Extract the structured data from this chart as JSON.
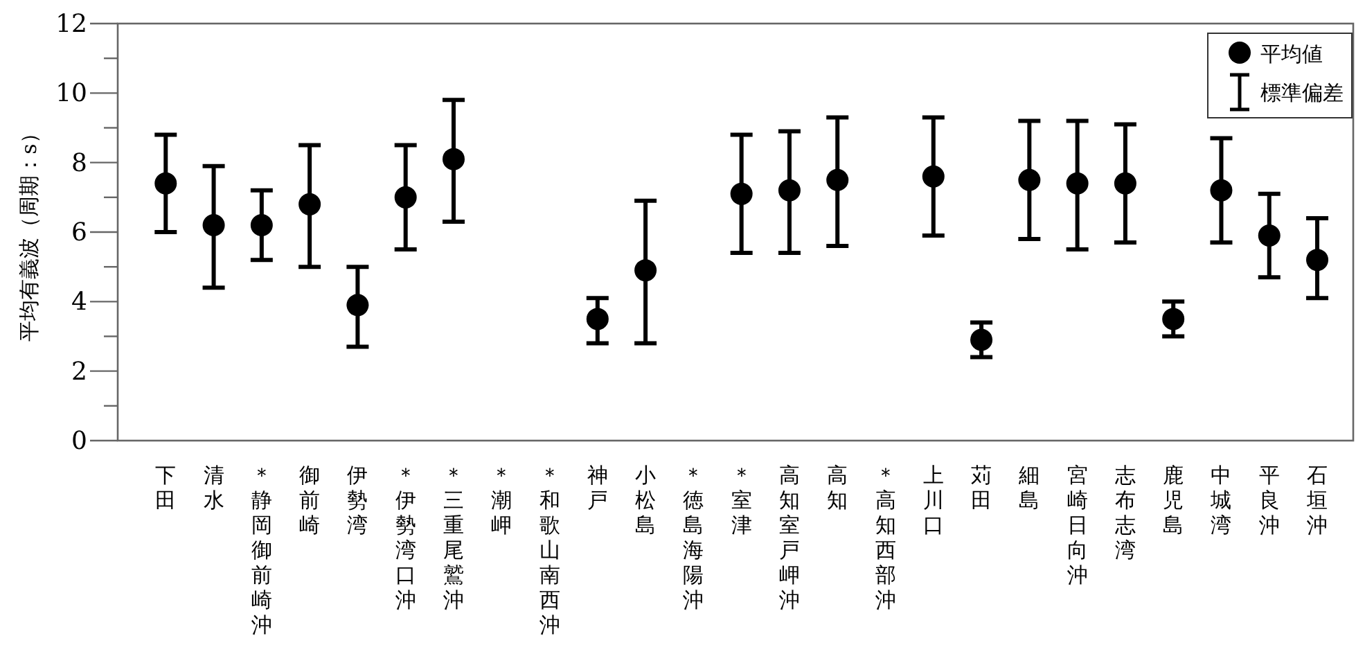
{
  "chart_data": {
    "type": "scatter",
    "ylabel": "平均有義波（周期：s）",
    "categories": [
      "下田",
      "清水",
      "＊静岡御前崎沖",
      "御前崎",
      "伊勢湾",
      "＊伊勢湾口沖",
      "＊三重尾鷲沖",
      "＊潮岬",
      "＊和歌山南西沖",
      "神戸",
      "小松島",
      "＊徳島海陽沖",
      "＊室津",
      "高知室戸岬沖",
      "高知",
      "＊高知西部沖",
      "上川口",
      "苅田",
      "細島",
      "宮崎日向沖",
      "志布志湾",
      "鹿児島",
      "中城湾",
      "平良沖",
      "石垣沖"
    ],
    "series": [
      {
        "name": "平均値",
        "color": "#000000",
        "values": [
          7.4,
          6.2,
          6.2,
          6.8,
          3.9,
          7.0,
          8.1,
          null,
          null,
          3.5,
          4.9,
          null,
          7.1,
          7.2,
          7.5,
          null,
          7.6,
          2.9,
          7.5,
          7.4,
          7.4,
          3.5,
          7.2,
          5.9,
          5.2
        ],
        "errors": [
          [
            6.0,
            8.8
          ],
          [
            4.4,
            7.9
          ],
          [
            5.2,
            7.2
          ],
          [
            5.0,
            8.5
          ],
          [
            2.7,
            5.0
          ],
          [
            5.5,
            8.5
          ],
          [
            6.3,
            9.8
          ],
          null,
          null,
          [
            2.8,
            4.1
          ],
          [
            2.8,
            6.9
          ],
          null,
          [
            5.4,
            8.8
          ],
          [
            5.4,
            8.9
          ],
          [
            5.6,
            9.3
          ],
          null,
          [
            5.9,
            9.3
          ],
          [
            2.4,
            3.4
          ],
          [
            5.8,
            9.2
          ],
          [
            5.5,
            9.2
          ],
          [
            5.7,
            9.1
          ],
          [
            3.0,
            4.0
          ],
          [
            5.7,
            8.7
          ],
          [
            4.7,
            7.1
          ],
          [
            4.1,
            6.4
          ]
        ]
      }
    ],
    "annotations": [
      "標準偏差"
    ],
    "ylim": [
      0,
      12
    ],
    "yticks": [
      0,
      {
        "value": 1,
        "label": null
      },
      2,
      {
        "value": 3,
        "label": null
      },
      4,
      {
        "value": 5,
        "label": null
      },
      6,
      {
        "value": 7,
        "label": null
      },
      8,
      {
        "value": 9,
        "label": null
      },
      10,
      {
        "value": 11,
        "label": null
      },
      12
    ],
    "grid": false,
    "legend": "top right",
    "marker": "circle"
  }
}
